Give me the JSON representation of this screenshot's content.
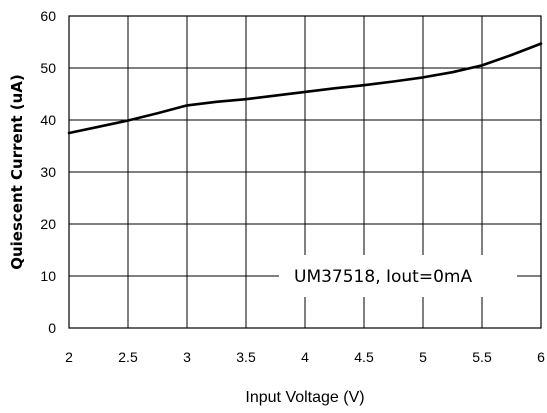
{
  "chart_data": {
    "type": "line",
    "title": "",
    "xlabel": "Input Voltage (V)",
    "ylabel": "Quiescent Current (uA)",
    "xlim": [
      2,
      6
    ],
    "ylim": [
      0,
      60
    ],
    "x_ticks": [
      2,
      2.5,
      3,
      3.5,
      4,
      4.5,
      5,
      5.5,
      6
    ],
    "x_tick_labels": [
      "2",
      "2.5",
      "3",
      "3.5",
      "4",
      "4.5",
      "5",
      "5.5",
      "6"
    ],
    "y_ticks": [
      0,
      10,
      20,
      30,
      40,
      50,
      60
    ],
    "y_tick_labels": [
      "0",
      "10",
      "20",
      "30",
      "40",
      "50",
      "60"
    ],
    "grid": true,
    "annotation": "UM37518, Iout=0mA",
    "series": [
      {
        "name": "",
        "x": [
          2.0,
          2.25,
          2.5,
          2.75,
          3.0,
          3.25,
          3.5,
          3.75,
          4.0,
          4.25,
          4.5,
          4.75,
          5.0,
          5.25,
          5.5,
          5.75,
          6.0
        ],
        "y": [
          37.5,
          38.7,
          39.9,
          41.3,
          42.8,
          43.5,
          44.0,
          44.7,
          45.4,
          46.1,
          46.7,
          47.4,
          48.2,
          49.2,
          50.5,
          52.5,
          54.7
        ]
      }
    ]
  }
}
